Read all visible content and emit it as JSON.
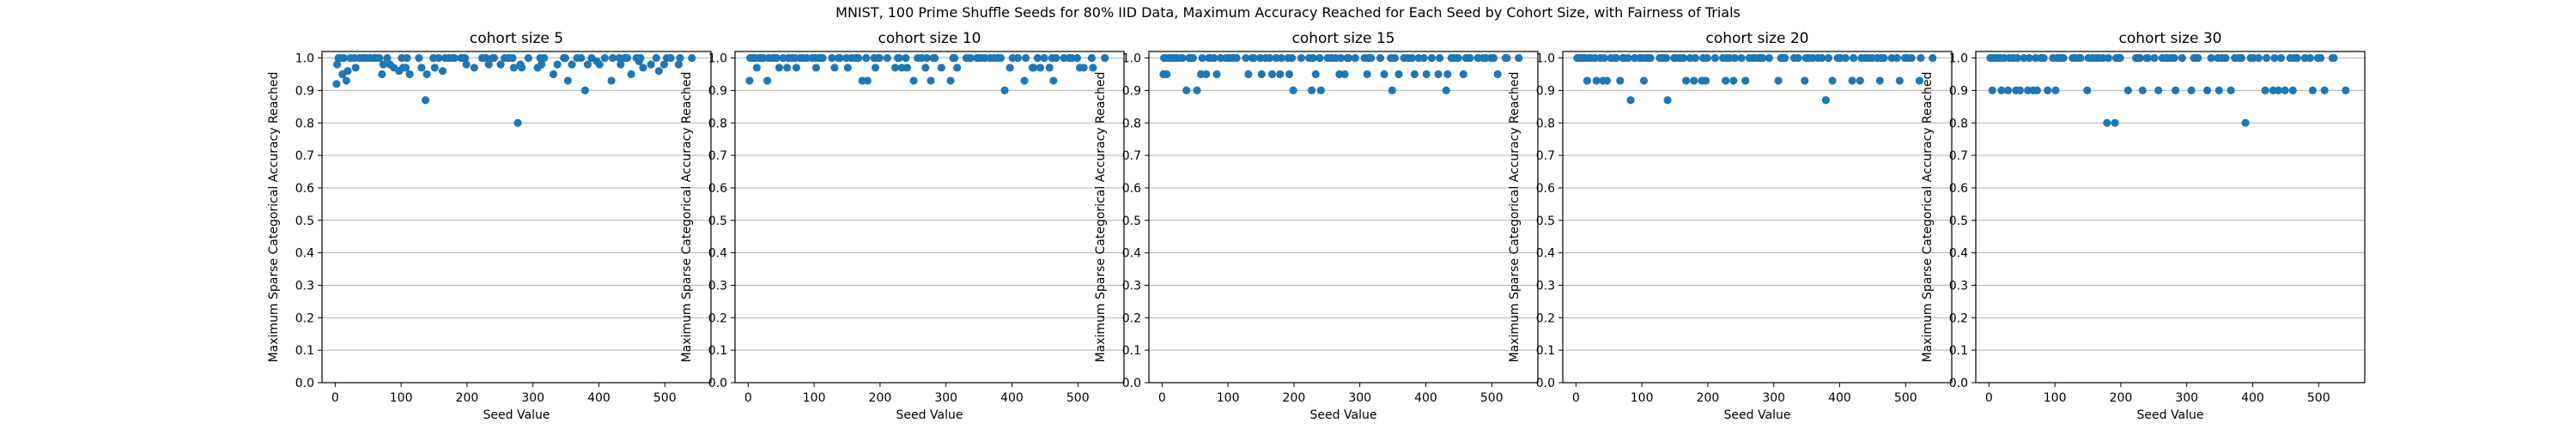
{
  "figure": {
    "suptitle": "MNIST, 100 Prime Shuffle Seeds for 80% IID Data, Maximum Accuracy Reached for Each Seed by Cohort Size, with Fairness of Trials"
  },
  "style": {
    "marker_color": "#1f77b4",
    "grid_color": "#b0b0b0",
    "axis_color": "#000000"
  },
  "chart_data": [
    {
      "type": "scatter",
      "title": "cohort size 5",
      "xlabel": "Seed Value",
      "ylabel": "Maximum Sparse Categorical Accuracy Reached",
      "xlim": [
        -20,
        570
      ],
      "ylim": [
        0.0,
        1.02
      ],
      "xticks": [
        0,
        100,
        200,
        300,
        400,
        500
      ],
      "yticks": [
        0.0,
        0.1,
        0.2,
        0.3,
        0.4,
        0.5,
        0.6,
        0.7,
        0.8,
        0.9,
        1.0
      ],
      "ytick_labels": [
        "0.0",
        "0.1",
        "0.2",
        "0.3",
        "0.4",
        "0.5",
        "0.6",
        "0.7",
        "0.8",
        "0.9",
        "1.0"
      ],
      "grid": "horizontal",
      "x": [
        2,
        3,
        5,
        7,
        11,
        13,
        17,
        19,
        23,
        29,
        31,
        37,
        41,
        43,
        47,
        53,
        59,
        61,
        67,
        71,
        73,
        79,
        83,
        89,
        97,
        101,
        103,
        107,
        109,
        113,
        127,
        131,
        137,
        139,
        149,
        151,
        157,
        163,
        167,
        173,
        179,
        181,
        191,
        193,
        197,
        199,
        211,
        223,
        227,
        229,
        233,
        239,
        241,
        251,
        257,
        263,
        269,
        271,
        277,
        281,
        283,
        293,
        307,
        311,
        313,
        317,
        331,
        337,
        347,
        349,
        353,
        359,
        367,
        373,
        379,
        383,
        389,
        397,
        401,
        409,
        419,
        421,
        431,
        433,
        439,
        443,
        449,
        457,
        461,
        463,
        467,
        479,
        487,
        491,
        499,
        503,
        509,
        521,
        523,
        541
      ],
      "y": [
        0.92,
        0.98,
        1.0,
        1.0,
        0.95,
        1.0,
        0.93,
        0.96,
        1.0,
        1.0,
        0.97,
        1.0,
        1.0,
        1.0,
        1.0,
        1.0,
        1.0,
        1.0,
        1.0,
        0.95,
        0.98,
        1.0,
        0.98,
        0.97,
        0.96,
        1.0,
        0.97,
        0.97,
        1.0,
        0.95,
        1.0,
        0.97,
        0.87,
        0.95,
        1.0,
        0.97,
        1.0,
        0.96,
        1.0,
        1.0,
        1.0,
        1.0,
        1.0,
        1.0,
        1.0,
        0.98,
        0.97,
        1.0,
        1.0,
        1.0,
        0.98,
        1.0,
        1.0,
        0.98,
        1.0,
        1.0,
        1.0,
        0.97,
        0.8,
        0.98,
        0.97,
        1.0,
        0.97,
        1.0,
        0.98,
        1.0,
        0.95,
        0.98,
        1.0,
        1.0,
        0.93,
        0.98,
        1.0,
        1.0,
        0.9,
        0.98,
        1.0,
        0.99,
        0.98,
        1.0,
        0.93,
        1.0,
        1.0,
        0.98,
        1.0,
        1.0,
        0.95,
        1.0,
        0.99,
        1.0,
        0.97,
        0.98,
        1.0,
        0.96,
        0.98,
        1.0,
        1.0,
        0.98,
        1.0,
        1.0
      ]
    },
    {
      "type": "scatter",
      "title": "cohort size 10",
      "xlabel": "Seed Value",
      "ylabel": "Maximum Sparse Categorical Accuracy Reached",
      "xlim": [
        -20,
        570
      ],
      "ylim": [
        0.0,
        1.02
      ],
      "xticks": [
        0,
        100,
        200,
        300,
        400,
        500
      ],
      "yticks": [
        0.0,
        0.1,
        0.2,
        0.3,
        0.4,
        0.5,
        0.6,
        0.7,
        0.8,
        0.9,
        1.0
      ],
      "ytick_labels": [
        "0.0",
        "0.1",
        "0.2",
        "0.3",
        "0.4",
        "0.5",
        "0.6",
        "0.7",
        "0.8",
        "0.9",
        "1.0"
      ],
      "grid": "horizontal",
      "x": [
        2,
        3,
        5,
        7,
        11,
        13,
        17,
        19,
        23,
        29,
        31,
        37,
        41,
        43,
        47,
        53,
        59,
        61,
        67,
        71,
        73,
        79,
        83,
        89,
        97,
        101,
        103,
        107,
        109,
        113,
        127,
        131,
        137,
        139,
        149,
        151,
        157,
        163,
        167,
        173,
        179,
        181,
        191,
        193,
        197,
        199,
        211,
        223,
        227,
        229,
        233,
        239,
        241,
        251,
        257,
        263,
        269,
        271,
        277,
        281,
        283,
        293,
        307,
        311,
        313,
        317,
        331,
        337,
        347,
        349,
        353,
        359,
        367,
        373,
        379,
        383,
        389,
        397,
        401,
        409,
        419,
        421,
        431,
        433,
        439,
        443,
        449,
        457,
        461,
        463,
        467,
        479,
        487,
        491,
        499,
        503,
        509,
        521,
        523,
        541
      ],
      "y": [
        0.93,
        1.0,
        1.0,
        1.0,
        1.0,
        0.97,
        1.0,
        1.0,
        1.0,
        0.93,
        1.0,
        1.0,
        1.0,
        1.0,
        0.97,
        1.0,
        0.97,
        1.0,
        1.0,
        1.0,
        0.97,
        1.0,
        1.0,
        1.0,
        1.0,
        1.0,
        0.97,
        1.0,
        1.0,
        1.0,
        1.0,
        0.97,
        1.0,
        1.0,
        1.0,
        0.97,
        1.0,
        1.0,
        1.0,
        0.93,
        1.0,
        0.93,
        1.0,
        0.97,
        1.0,
        1.0,
        1.0,
        0.97,
        1.0,
        1.0,
        0.97,
        1.0,
        0.97,
        0.93,
        1.0,
        1.0,
        0.97,
        1.0,
        0.93,
        1.0,
        1.0,
        0.97,
        0.93,
        1.0,
        1.0,
        0.97,
        1.0,
        1.0,
        1.0,
        1.0,
        1.0,
        1.0,
        1.0,
        1.0,
        1.0,
        1.0,
        0.9,
        0.97,
        1.0,
        1.0,
        0.93,
        1.0,
        0.97,
        0.97,
        1.0,
        0.97,
        1.0,
        0.97,
        1.0,
        0.93,
        1.0,
        1.0,
        1.0,
        1.0,
        1.0,
        0.97,
        0.97,
        1.0,
        0.97,
        1.0
      ]
    },
    {
      "type": "scatter",
      "title": "cohort size 15",
      "xlabel": "Seed Value",
      "ylabel": "Maximum Sparse Categorical Accuracy Reached",
      "xlim": [
        -20,
        570
      ],
      "ylim": [
        0.0,
        1.02
      ],
      "xticks": [
        0,
        100,
        200,
        300,
        400,
        500
      ],
      "yticks": [
        0.0,
        0.1,
        0.2,
        0.3,
        0.4,
        0.5,
        0.6,
        0.7,
        0.8,
        0.9,
        1.0
      ],
      "ytick_labels": [
        "0.0",
        "0.1",
        "0.2",
        "0.3",
        "0.4",
        "0.5",
        "0.6",
        "0.7",
        "0.8",
        "0.9",
        "1.0"
      ],
      "grid": "horizontal",
      "x": [
        2,
        3,
        5,
        7,
        11,
        13,
        17,
        19,
        23,
        29,
        31,
        37,
        41,
        43,
        47,
        53,
        59,
        61,
        67,
        71,
        73,
        79,
        83,
        89,
        97,
        101,
        103,
        107,
        109,
        113,
        127,
        131,
        137,
        139,
        149,
        151,
        157,
        163,
        167,
        173,
        179,
        181,
        191,
        193,
        197,
        199,
        211,
        223,
        227,
        229,
        233,
        239,
        241,
        251,
        257,
        263,
        269,
        271,
        277,
        281,
        283,
        293,
        307,
        311,
        313,
        317,
        331,
        337,
        347,
        349,
        353,
        359,
        367,
        373,
        379,
        383,
        389,
        397,
        401,
        409,
        419,
        421,
        431,
        433,
        439,
        443,
        449,
        457,
        461,
        463,
        467,
        479,
        487,
        491,
        499,
        503,
        509,
        521,
        523,
        541
      ],
      "y": [
        0.95,
        1.0,
        1.0,
        0.95,
        1.0,
        1.0,
        1.0,
        1.0,
        1.0,
        1.0,
        1.0,
        0.9,
        1.0,
        1.0,
        1.0,
        0.9,
        0.95,
        1.0,
        0.95,
        1.0,
        1.0,
        1.0,
        0.95,
        1.0,
        1.0,
        1.0,
        1.0,
        1.0,
        1.0,
        1.0,
        1.0,
        0.95,
        1.0,
        1.0,
        1.0,
        0.95,
        1.0,
        1.0,
        0.95,
        1.0,
        0.95,
        1.0,
        1.0,
        0.95,
        1.0,
        0.9,
        1.0,
        1.0,
        0.9,
        1.0,
        0.95,
        1.0,
        0.9,
        1.0,
        1.0,
        1.0,
        0.95,
        1.0,
        0.95,
        1.0,
        1.0,
        1.0,
        1.0,
        0.95,
        1.0,
        1.0,
        1.0,
        0.95,
        1.0,
        0.9,
        1.0,
        0.95,
        1.0,
        1.0,
        1.0,
        0.95,
        1.0,
        1.0,
        0.95,
        1.0,
        0.95,
        1.0,
        0.9,
        0.95,
        1.0,
        1.0,
        1.0,
        0.95,
        1.0,
        1.0,
        1.0,
        1.0,
        1.0,
        1.0,
        1.0,
        1.0,
        0.95,
        1.0,
        1.0,
        1.0
      ]
    },
    {
      "type": "scatter",
      "title": "cohort size 20",
      "xlabel": "Seed Value",
      "ylabel": "Maximum Sparse Categorical Accuracy Reached",
      "xlim": [
        -20,
        570
      ],
      "ylim": [
        0.0,
        1.02
      ],
      "xticks": [
        0,
        100,
        200,
        300,
        400,
        500
      ],
      "yticks": [
        0.0,
        0.1,
        0.2,
        0.3,
        0.4,
        0.5,
        0.6,
        0.7,
        0.8,
        0.9,
        1.0
      ],
      "ytick_labels": [
        "0.0",
        "0.1",
        "0.2",
        "0.3",
        "0.4",
        "0.5",
        "0.6",
        "0.7",
        "0.8",
        "0.9",
        "1.0"
      ],
      "grid": "horizontal",
      "x": [
        2,
        3,
        5,
        7,
        11,
        13,
        17,
        19,
        23,
        29,
        31,
        37,
        41,
        43,
        47,
        53,
        59,
        61,
        67,
        71,
        73,
        79,
        83,
        89,
        97,
        101,
        103,
        107,
        109,
        113,
        127,
        131,
        137,
        139,
        149,
        151,
        157,
        163,
        167,
        173,
        179,
        181,
        191,
        193,
        197,
        199,
        211,
        223,
        227,
        229,
        233,
        239,
        241,
        251,
        257,
        263,
        269,
        271,
        277,
        281,
        283,
        293,
        307,
        311,
        313,
        317,
        331,
        337,
        347,
        349,
        353,
        359,
        367,
        373,
        379,
        383,
        389,
        397,
        401,
        409,
        419,
        421,
        431,
        433,
        439,
        443,
        449,
        457,
        461,
        463,
        467,
        479,
        487,
        491,
        499,
        503,
        509,
        521,
        523,
        541
      ],
      "y": [
        1.0,
        1.0,
        1.0,
        1.0,
        1.0,
        1.0,
        0.93,
        1.0,
        1.0,
        1.0,
        0.93,
        1.0,
        0.93,
        1.0,
        0.93,
        1.0,
        1.0,
        1.0,
        0.93,
        1.0,
        1.0,
        1.0,
        0.87,
        1.0,
        1.0,
        1.0,
        0.93,
        1.0,
        1.0,
        1.0,
        1.0,
        1.0,
        1.0,
        0.87,
        1.0,
        1.0,
        1.0,
        1.0,
        0.93,
        1.0,
        0.93,
        1.0,
        0.93,
        1.0,
        0.93,
        1.0,
        1.0,
        1.0,
        0.93,
        1.0,
        1.0,
        0.93,
        1.0,
        1.0,
        0.93,
        1.0,
        1.0,
        1.0,
        1.0,
        1.0,
        1.0,
        1.0,
        0.93,
        1.0,
        1.0,
        1.0,
        1.0,
        1.0,
        0.93,
        1.0,
        1.0,
        1.0,
        1.0,
        1.0,
        0.87,
        1.0,
        0.93,
        1.0,
        1.0,
        1.0,
        0.93,
        1.0,
        0.93,
        1.0,
        1.0,
        1.0,
        1.0,
        1.0,
        0.93,
        1.0,
        1.0,
        1.0,
        1.0,
        0.93,
        1.0,
        1.0,
        1.0,
        0.93,
        1.0,
        1.0
      ]
    },
    {
      "type": "scatter",
      "title": "cohort size 30",
      "xlabel": "Seed Value",
      "ylabel": "Maximum Sparse Categorical Accuracy Reached",
      "xlim": [
        -20,
        570
      ],
      "ylim": [
        0.0,
        1.02
      ],
      "xticks": [
        0,
        100,
        200,
        300,
        400,
        500
      ],
      "yticks": [
        0.0,
        0.1,
        0.2,
        0.3,
        0.4,
        0.5,
        0.6,
        0.7,
        0.8,
        0.9,
        1.0
      ],
      "ytick_labels": [
        "0.0",
        "0.1",
        "0.2",
        "0.3",
        "0.4",
        "0.5",
        "0.6",
        "0.7",
        "0.8",
        "0.9",
        "1.0"
      ],
      "grid": "horizontal",
      "x": [
        2,
        3,
        5,
        7,
        11,
        13,
        17,
        19,
        23,
        29,
        31,
        37,
        41,
        43,
        47,
        53,
        59,
        61,
        67,
        71,
        73,
        79,
        83,
        89,
        97,
        101,
        103,
        107,
        109,
        113,
        127,
        131,
        137,
        139,
        149,
        151,
        157,
        163,
        167,
        173,
        179,
        181,
        191,
        193,
        197,
        199,
        211,
        223,
        227,
        229,
        233,
        239,
        241,
        251,
        257,
        263,
        269,
        271,
        277,
        281,
        283,
        293,
        307,
        311,
        313,
        317,
        331,
        337,
        347,
        349,
        353,
        359,
        367,
        373,
        379,
        383,
        389,
        397,
        401,
        409,
        419,
        421,
        431,
        433,
        439,
        443,
        449,
        457,
        461,
        463,
        467,
        479,
        487,
        491,
        499,
        503,
        509,
        521,
        523,
        541
      ],
      "y": [
        1.0,
        1.0,
        0.9,
        1.0,
        1.0,
        1.0,
        1.0,
        0.9,
        1.0,
        0.9,
        1.0,
        1.0,
        0.9,
        1.0,
        0.9,
        1.0,
        0.9,
        1.0,
        0.9,
        1.0,
        0.9,
        1.0,
        1.0,
        0.9,
        1.0,
        0.9,
        1.0,
        1.0,
        1.0,
        1.0,
        1.0,
        1.0,
        1.0,
        1.0,
        0.9,
        1.0,
        1.0,
        1.0,
        1.0,
        1.0,
        0.8,
        1.0,
        0.8,
        1.0,
        1.0,
        1.0,
        0.9,
        1.0,
        1.0,
        1.0,
        0.9,
        1.0,
        1.0,
        1.0,
        0.9,
        1.0,
        1.0,
        1.0,
        1.0,
        1.0,
        0.9,
        1.0,
        0.9,
        1.0,
        1.0,
        1.0,
        0.9,
        1.0,
        1.0,
        0.9,
        1.0,
        1.0,
        0.9,
        1.0,
        1.0,
        1.0,
        0.8,
        1.0,
        1.0,
        1.0,
        0.9,
        1.0,
        0.9,
        1.0,
        0.9,
        1.0,
        0.9,
        1.0,
        0.9,
        1.0,
        1.0,
        1.0,
        1.0,
        0.9,
        1.0,
        1.0,
        0.9,
        1.0,
        1.0,
        0.9
      ]
    }
  ]
}
